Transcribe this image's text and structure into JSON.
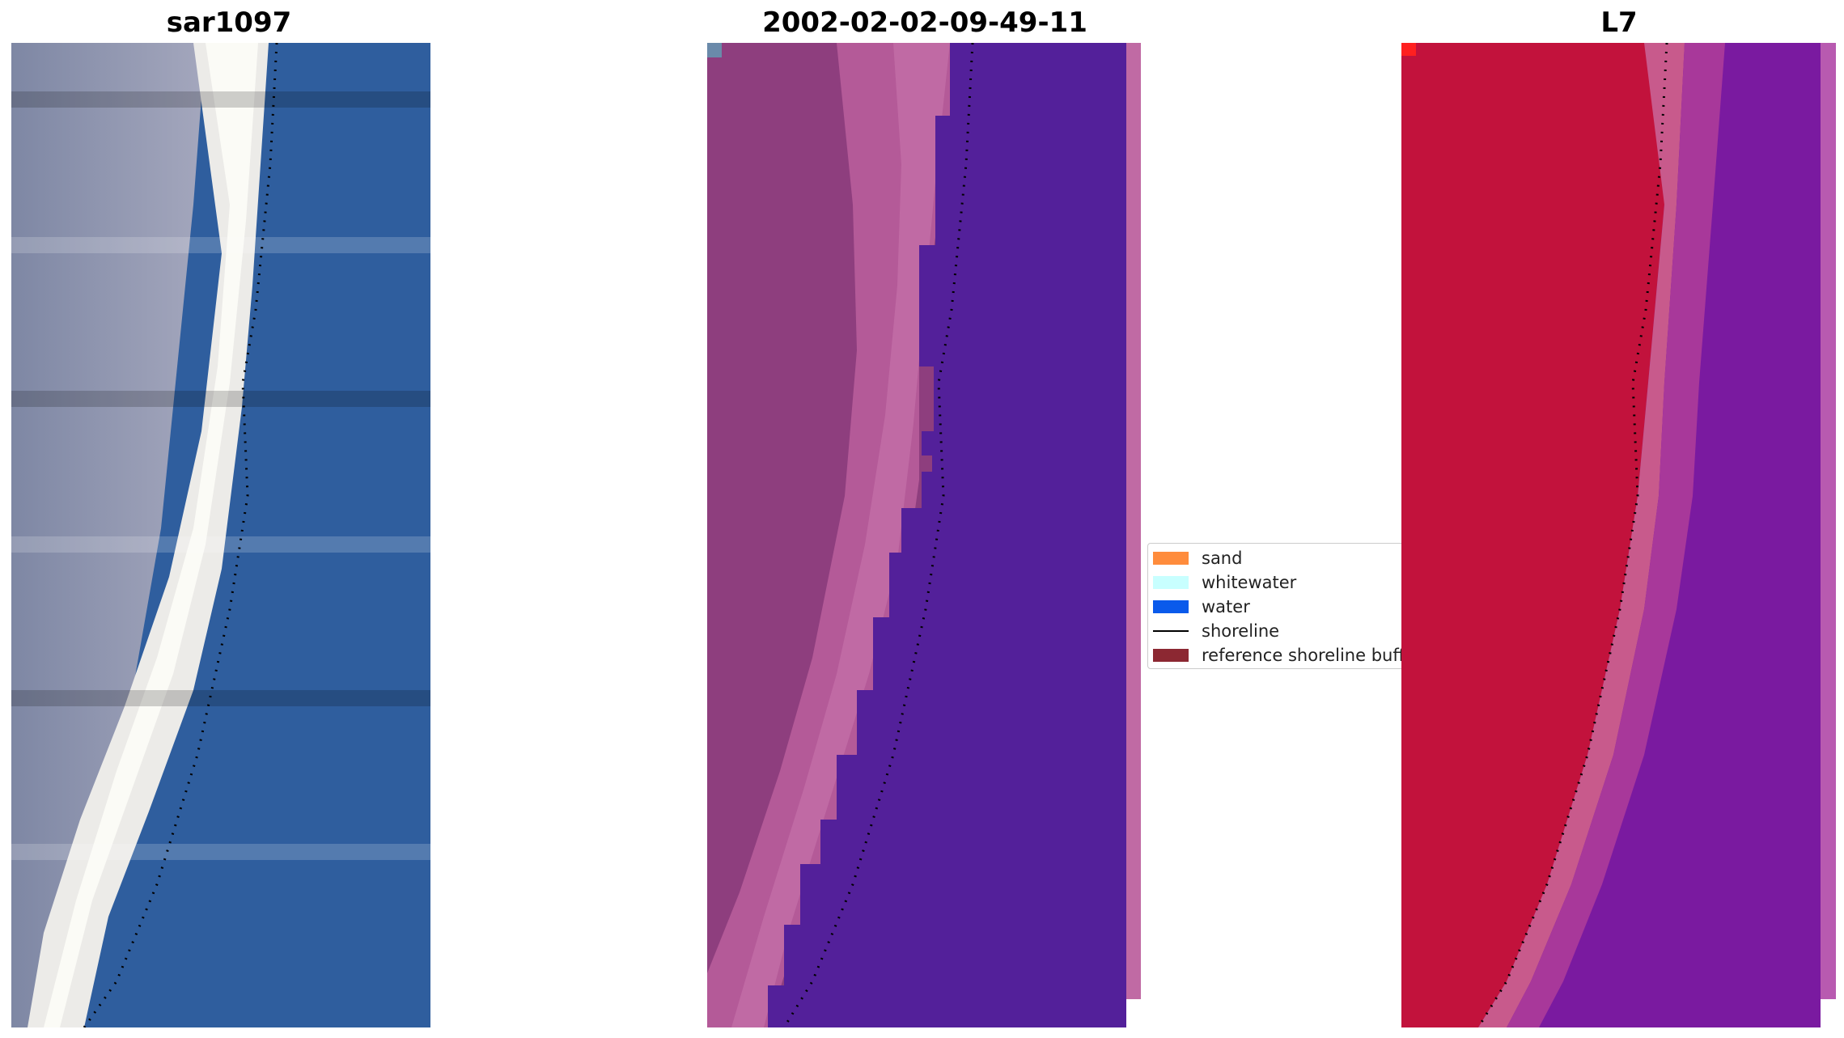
{
  "panels": [
    {
      "title": "sar1097",
      "kind": "rgb"
    },
    {
      "title": "2002-02-02-09-49-11",
      "kind": "classified"
    },
    {
      "title": "L7",
      "kind": "index"
    }
  ],
  "legend": {
    "items": [
      {
        "label": "sand",
        "color": "#ff8c3c",
        "icon": "swatch"
      },
      {
        "label": "whitewater",
        "color": "#c8ffff",
        "icon": "swatch"
      },
      {
        "label": "water",
        "color": "#0a5aeb",
        "icon": "swatch"
      },
      {
        "label": "shoreline",
        "color": "#000000",
        "icon": "line"
      },
      {
        "label": "reference shoreline buffer",
        "color": "#8c2832",
        "icon": "swatch"
      }
    ]
  },
  "colors": {
    "water_rgb": "#2f5e9e",
    "white_strip": "#f2f2ee",
    "beach_grey": "#8c93ab",
    "classified_water": "#53209a",
    "classified_land": "#a2508a",
    "index_red": "#c2123c",
    "index_purple": "#7a1aa0"
  }
}
